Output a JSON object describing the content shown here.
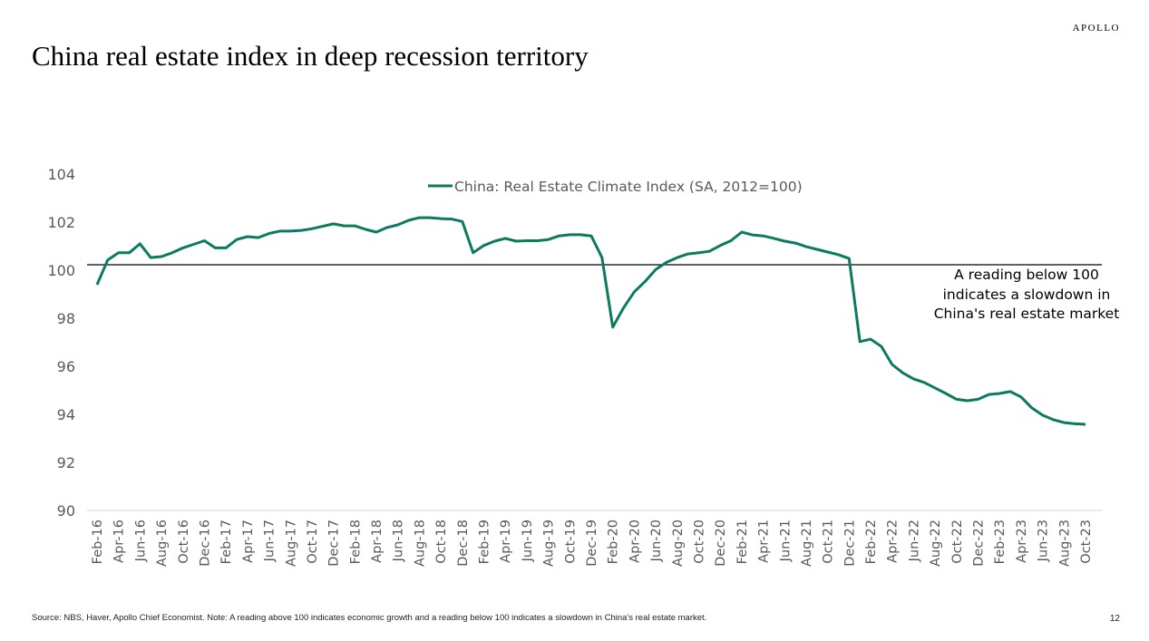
{
  "brand": "APOLLO",
  "footer": "Source: NBS, Haver, Apollo Chief Economist. Note: A reading above 100 indicates economic growth and a reading below 100 indicates a slowdown in China's real estate market.",
  "page_number": "12",
  "colors": {
    "series": "#0b7a5f",
    "reference": "#000000",
    "axis_text": "#595959"
  },
  "chart_data": {
    "type": "line",
    "title": "China real estate index in deep recession territory",
    "xlabel": "",
    "ylabel": "",
    "ylim": [
      90,
      104
    ],
    "yticks": [
      "90",
      "92",
      "94",
      "96",
      "98",
      "100",
      "102",
      "104"
    ],
    "grid": false,
    "legend_position": "top-center",
    "start_month": "Feb-16",
    "xtick_labels": [
      "Feb-16",
      "Apr-16",
      "Jun-16",
      "Aug-16",
      "Oct-16",
      "Dec-16",
      "Feb-17",
      "Apr-17",
      "Jun-17",
      "Aug-17",
      "Oct-17",
      "Dec-17",
      "Feb-18",
      "Apr-18",
      "Jun-18",
      "Aug-18",
      "Oct-18",
      "Dec-18",
      "Feb-19",
      "Apr-19",
      "Jun-19",
      "Aug-19",
      "Oct-19",
      "Dec-19",
      "Feb-20",
      "Apr-20",
      "Jun-20",
      "Aug-20",
      "Oct-20",
      "Dec-20",
      "Feb-21",
      "Apr-21",
      "Jun-21",
      "Aug-21",
      "Oct-21",
      "Dec-21",
      "Feb-22",
      "Apr-22",
      "Jun-22",
      "Aug-22",
      "Oct-22",
      "Dec-22",
      "Feb-23",
      "Apr-23",
      "Jun-23",
      "Aug-23",
      "Oct-23"
    ],
    "reference_line": 100,
    "annotation": [
      "A reading below 100",
      "indicates a slowdown in",
      "China's real estate market"
    ],
    "series": [
      {
        "name": "China: Real Estate Climate Index (SA, 2012=100)",
        "values": [
          99.17,
          100.2,
          100.5,
          100.5,
          100.87,
          100.3,
          100.34,
          100.5,
          100.7,
          100.85,
          101.0,
          100.7,
          100.7,
          101.05,
          101.17,
          101.13,
          101.3,
          101.4,
          101.4,
          101.43,
          101.5,
          101.6,
          101.7,
          101.62,
          101.62,
          101.47,
          101.36,
          101.55,
          101.66,
          101.85,
          101.96,
          101.96,
          101.92,
          101.9,
          101.8,
          100.5,
          100.8,
          100.98,
          101.1,
          100.98,
          101.0,
          101.0,
          101.05,
          101.2,
          101.25,
          101.25,
          101.2,
          100.3,
          97.4,
          98.2,
          98.87,
          99.3,
          99.8,
          100.1,
          100.3,
          100.45,
          100.5,
          100.56,
          100.8,
          101.0,
          101.36,
          101.24,
          101.2,
          101.1,
          100.98,
          100.9,
          100.75,
          100.64,
          100.53,
          100.42,
          100.26,
          96.8,
          96.9,
          96.6,
          95.85,
          95.5,
          95.25,
          95.1,
          94.87,
          94.64,
          94.4,
          94.34,
          94.4,
          94.6,
          94.64,
          94.72,
          94.5,
          94.04,
          93.74,
          93.55,
          93.43,
          93.38,
          93.36
        ]
      }
    ]
  }
}
